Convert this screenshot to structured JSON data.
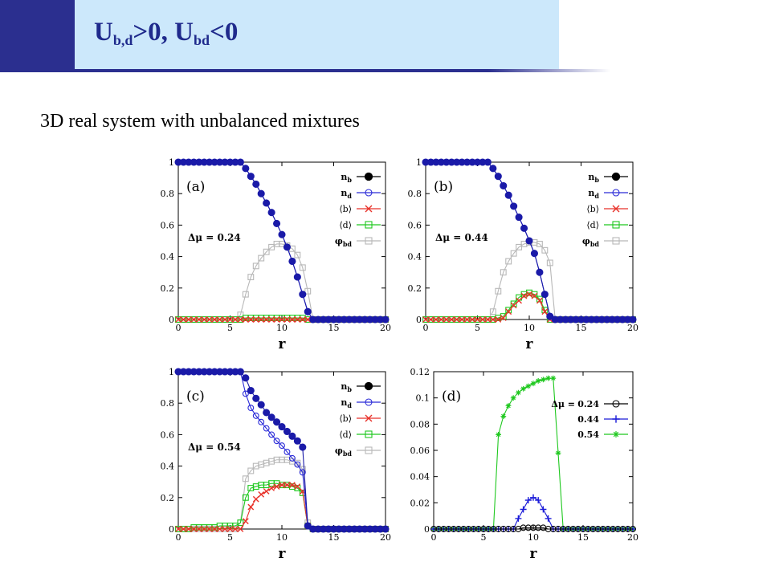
{
  "slide": {
    "title_main_1": "U",
    "title_sub_1": "b,d",
    "title_main_2": ">0, U",
    "title_sub_2": "bd",
    "title_main_3": "<0",
    "subtitle": "3D real system with unbalanced mixtures"
  },
  "colors": {
    "nb": "#000000",
    "nb_fill": "#1a1aa8",
    "nd": "#2a2ad8",
    "b": "#e8322a",
    "d": "#1ec81e",
    "phi": "#b8b8b8",
    "d024": "#000000",
    "d044": "#1a1ad8",
    "d054": "#1ec81e"
  },
  "chart_data": [
    {
      "type": "line",
      "panel": "(a)",
      "annotation": "Δμ = 0.24",
      "xlabel": "r",
      "xlim": [
        0,
        20
      ],
      "ylim": [
        0,
        1
      ],
      "xticks": [
        0,
        5,
        10,
        15,
        20
      ],
      "yticks": [
        0,
        0.2,
        0.4,
        0.6,
        0.8,
        1
      ],
      "ytick_labels": [
        "0",
        "0.2",
        "0.4",
        "0.6",
        "0.8",
        "1"
      ],
      "legend_position": "top-right",
      "x": [
        0,
        0.5,
        1,
        1.5,
        2,
        2.5,
        3,
        3.5,
        4,
        4.5,
        5,
        5.5,
        6,
        6.5,
        7,
        7.5,
        8,
        8.5,
        9,
        9.5,
        10,
        10.5,
        11,
        11.5,
        12,
        12.5,
        13,
        13.5,
        14,
        14.5,
        15,
        15.5,
        16,
        16.5,
        17,
        17.5,
        18,
        18.5,
        19,
        19.5,
        20
      ],
      "series": [
        {
          "name": "n_b",
          "style": "nb",
          "values": [
            1,
            1,
            1,
            1,
            1,
            1,
            1,
            1,
            1,
            1,
            1,
            1,
            1,
            0.96,
            0.91,
            0.86,
            0.8,
            0.74,
            0.68,
            0.61,
            0.54,
            0.46,
            0.37,
            0.27,
            0.16,
            0.05,
            0,
            0,
            0,
            0,
            0,
            0,
            0,
            0,
            0,
            0,
            0,
            0,
            0,
            0,
            0
          ]
        },
        {
          "name": "n_d",
          "style": "nd",
          "values": [
            1,
            1,
            1,
            1,
            1,
            1,
            1,
            1,
            1,
            1,
            1,
            1,
            1,
            0.96,
            0.91,
            0.86,
            0.8,
            0.74,
            0.68,
            0.61,
            0.54,
            0.46,
            0.37,
            0.27,
            0.16,
            0.05,
            0,
            0,
            0,
            0,
            0,
            0,
            0,
            0,
            0,
            0,
            0,
            0,
            0,
            0,
            0
          ]
        },
        {
          "name": "<b>",
          "style": "b",
          "values": [
            0,
            0,
            0,
            0,
            0,
            0,
            0,
            0,
            0,
            0,
            0,
            0,
            0,
            0,
            0,
            0,
            0,
            0,
            0,
            0,
            0,
            0,
            0,
            0,
            0,
            0,
            0,
            0,
            0,
            0,
            0,
            0,
            0,
            0,
            0,
            0,
            0,
            0,
            0,
            0,
            0
          ]
        },
        {
          "name": "<d>",
          "style": "d",
          "values": [
            0,
            0,
            0,
            0,
            0,
            0,
            0,
            0,
            0,
            0,
            0,
            0,
            0,
            0.01,
            0.01,
            0.01,
            0.01,
            0.01,
            0.01,
            0.01,
            0.01,
            0.01,
            0.01,
            0.01,
            0.01,
            0,
            0,
            0,
            0,
            0,
            0,
            0,
            0,
            0,
            0,
            0,
            0,
            0,
            0,
            0,
            0
          ]
        },
        {
          "name": "φ_bd",
          "style": "phi",
          "values": [
            0,
            0,
            0,
            0,
            0,
            0,
            0,
            0,
            0,
            0,
            0,
            0,
            0.03,
            0.16,
            0.27,
            0.34,
            0.39,
            0.43,
            0.46,
            0.48,
            0.48,
            0.47,
            0.45,
            0.41,
            0.33,
            0.18,
            0,
            0,
            0,
            0,
            0,
            0,
            0,
            0,
            0,
            0,
            0,
            0,
            0,
            0,
            0
          ]
        }
      ]
    },
    {
      "type": "line",
      "panel": "(b)",
      "annotation": "Δμ = 0.44",
      "xlabel": "r",
      "xlim": [
        0,
        20
      ],
      "ylim": [
        0,
        1
      ],
      "xticks": [
        0,
        5,
        10,
        15,
        20
      ],
      "yticks": [
        0,
        0.2,
        0.4,
        0.6,
        0.8,
        1
      ],
      "ytick_labels": [
        "0",
        "0.2",
        "0.4",
        "0.6",
        "0.8",
        "1"
      ],
      "legend_position": "top-right",
      "x": [
        0,
        0.5,
        1,
        1.5,
        2,
        2.5,
        3,
        3.5,
        4,
        4.5,
        5,
        5.5,
        6,
        6.5,
        7,
        7.5,
        8,
        8.5,
        9,
        9.5,
        10,
        10.5,
        11,
        11.5,
        12,
        12.5,
        13,
        13.5,
        14,
        14.5,
        15,
        15.5,
        16,
        16.5,
        17,
        17.5,
        18,
        18.5,
        19,
        19.5,
        20
      ],
      "series": [
        {
          "name": "n_b",
          "style": "nb",
          "values": [
            1,
            1,
            1,
            1,
            1,
            1,
            1,
            1,
            1,
            1,
            1,
            1,
            1,
            0.96,
            0.91,
            0.85,
            0.79,
            0.72,
            0.65,
            0.58,
            0.5,
            0.42,
            0.3,
            0.16,
            0.02,
            0,
            0,
            0,
            0,
            0,
            0,
            0,
            0,
            0,
            0,
            0,
            0,
            0,
            0,
            0,
            0
          ]
        },
        {
          "name": "n_d",
          "style": "nd",
          "values": [
            1,
            1,
            1,
            1,
            1,
            1,
            1,
            1,
            1,
            1,
            1,
            1,
            1,
            0.96,
            0.91,
            0.85,
            0.79,
            0.72,
            0.65,
            0.58,
            0.5,
            0.42,
            0.3,
            0.16,
            0.02,
            0,
            0,
            0,
            0,
            0,
            0,
            0,
            0,
            0,
            0,
            0,
            0,
            0,
            0,
            0,
            0
          ]
        },
        {
          "name": "<b>",
          "style": "b",
          "values": [
            0,
            0,
            0,
            0,
            0,
            0,
            0,
            0,
            0,
            0,
            0,
            0,
            0,
            0,
            0,
            0.01,
            0.05,
            0.09,
            0.12,
            0.15,
            0.16,
            0.15,
            0.12,
            0.05,
            0,
            0,
            0,
            0,
            0,
            0,
            0,
            0,
            0,
            0,
            0,
            0,
            0,
            0,
            0,
            0,
            0
          ]
        },
        {
          "name": "<d>",
          "style": "d",
          "values": [
            0,
            0,
            0,
            0,
            0,
            0,
            0,
            0,
            0,
            0,
            0,
            0,
            0,
            0,
            0.01,
            0.02,
            0.06,
            0.1,
            0.14,
            0.16,
            0.17,
            0.16,
            0.13,
            0.06,
            0,
            0,
            0,
            0,
            0,
            0,
            0,
            0,
            0,
            0,
            0,
            0,
            0,
            0,
            0,
            0,
            0
          ]
        },
        {
          "name": "φ_bd",
          "style": "phi",
          "values": [
            0,
            0,
            0,
            0,
            0,
            0,
            0,
            0,
            0,
            0,
            0,
            0,
            0,
            0.05,
            0.18,
            0.3,
            0.37,
            0.42,
            0.46,
            0.48,
            0.49,
            0.49,
            0.48,
            0.44,
            0.36,
            0,
            0,
            0,
            0,
            0,
            0,
            0,
            0,
            0,
            0,
            0,
            0,
            0,
            0,
            0,
            0
          ]
        }
      ]
    },
    {
      "type": "line",
      "panel": "(c)",
      "annotation": "Δμ = 0.54",
      "xlabel": "r",
      "xlim": [
        0,
        20
      ],
      "ylim": [
        0,
        1
      ],
      "xticks": [
        0,
        5,
        10,
        15,
        20
      ],
      "yticks": [
        0,
        0.2,
        0.4,
        0.6,
        0.8,
        1
      ],
      "ytick_labels": [
        "0",
        "0.2",
        "0.4",
        "0.6",
        "0.8",
        "1"
      ],
      "legend_position": "top-right",
      "x": [
        0,
        0.5,
        1,
        1.5,
        2,
        2.5,
        3,
        3.5,
        4,
        4.5,
        5,
        5.5,
        6,
        6.5,
        7,
        7.5,
        8,
        8.5,
        9,
        9.5,
        10,
        10.5,
        11,
        11.5,
        12,
        12.5,
        13,
        13.5,
        14,
        14.5,
        15,
        15.5,
        16,
        16.5,
        17,
        17.5,
        18,
        18.5,
        19,
        19.5,
        20
      ],
      "series": [
        {
          "name": "n_b",
          "style": "nb",
          "values": [
            1,
            1,
            1,
            1,
            1,
            1,
            1,
            1,
            1,
            1,
            1,
            1,
            1,
            0.96,
            0.88,
            0.83,
            0.79,
            0.74,
            0.71,
            0.68,
            0.65,
            0.62,
            0.59,
            0.56,
            0.52,
            0.02,
            0,
            0,
            0,
            0,
            0,
            0,
            0,
            0,
            0,
            0,
            0,
            0,
            0,
            0,
            0
          ]
        },
        {
          "name": "n_d",
          "style": "nd",
          "values": [
            1,
            1,
            1,
            1,
            1,
            1,
            1,
            1,
            1,
            1,
            1,
            1,
            1,
            0.86,
            0.77,
            0.72,
            0.68,
            0.64,
            0.6,
            0.56,
            0.53,
            0.49,
            0.45,
            0.41,
            0.36,
            0.02,
            0,
            0,
            0,
            0,
            0,
            0,
            0,
            0,
            0,
            0,
            0,
            0,
            0,
            0,
            0
          ]
        },
        {
          "name": "<b>",
          "style": "b",
          "values": [
            0,
            0,
            0,
            0,
            0,
            0,
            0,
            0,
            0,
            0,
            0,
            0,
            0,
            0.05,
            0.14,
            0.19,
            0.22,
            0.24,
            0.26,
            0.27,
            0.28,
            0.28,
            0.28,
            0.27,
            0.24,
            0.02,
            0,
            0,
            0,
            0,
            0,
            0,
            0,
            0,
            0,
            0,
            0,
            0,
            0,
            0,
            0
          ]
        },
        {
          "name": "<d>",
          "style": "d",
          "values": [
            0,
            0,
            0,
            0.01,
            0.01,
            0.01,
            0.01,
            0.01,
            0.02,
            0.02,
            0.02,
            0.02,
            0.04,
            0.2,
            0.26,
            0.27,
            0.28,
            0.28,
            0.29,
            0.29,
            0.28,
            0.28,
            0.27,
            0.26,
            0.23,
            0.02,
            0,
            0,
            0,
            0,
            0,
            0,
            0,
            0,
            0,
            0,
            0,
            0,
            0,
            0,
            0
          ]
        },
        {
          "name": "φ_bd",
          "style": "phi",
          "values": [
            0,
            0,
            0,
            0,
            0,
            0,
            0,
            0,
            0,
            0,
            0,
            0,
            0.04,
            0.32,
            0.37,
            0.4,
            0.41,
            0.42,
            0.43,
            0.44,
            0.44,
            0.44,
            0.43,
            0.42,
            0.38,
            0.04,
            0,
            0,
            0,
            0,
            0,
            0,
            0,
            0,
            0,
            0,
            0,
            0,
            0,
            0,
            0
          ]
        }
      ]
    },
    {
      "type": "line",
      "panel": "(d)",
      "xlabel": "r",
      "xlim": [
        0,
        20
      ],
      "ylim": [
        0,
        0.12
      ],
      "xticks": [
        0,
        5,
        10,
        15,
        20
      ],
      "yticks": [
        0,
        0.02,
        0.04,
        0.06,
        0.08,
        0.1,
        0.12
      ],
      "ytick_labels": [
        "0",
        "0.02",
        "0.04",
        "0.06",
        "0.08",
        "0.1",
        "0.12"
      ],
      "legend_position": "top-right",
      "legend_prefix": "Δμ =",
      "x": [
        0,
        0.5,
        1,
        1.5,
        2,
        2.5,
        3,
        3.5,
        4,
        4.5,
        5,
        5.5,
        6,
        6.5,
        7,
        7.5,
        8,
        8.5,
        9,
        9.5,
        10,
        10.5,
        11,
        11.5,
        12,
        12.5,
        13,
        13.5,
        14,
        14.5,
        15,
        15.5,
        16,
        16.5,
        17,
        17.5,
        18,
        18.5,
        19,
        19.5,
        20
      ],
      "series": [
        {
          "name": "0.24",
          "style": "d024",
          "values": [
            0,
            0,
            0,
            0,
            0,
            0,
            0,
            0,
            0,
            0,
            0,
            0,
            0,
            0,
            0,
            0,
            0,
            0,
            0.001,
            0.001,
            0.001,
            0.001,
            0.001,
            0,
            0,
            0,
            0,
            0,
            0,
            0,
            0,
            0,
            0,
            0,
            0,
            0,
            0,
            0,
            0,
            0,
            0
          ]
        },
        {
          "name": "0.44",
          "style": "d044",
          "values": [
            0,
            0,
            0,
            0,
            0,
            0,
            0,
            0,
            0,
            0,
            0,
            0,
            0,
            0,
            0,
            0,
            0,
            0.008,
            0.015,
            0.022,
            0.024,
            0.022,
            0.015,
            0.008,
            0,
            0,
            0,
            0,
            0,
            0,
            0,
            0,
            0,
            0,
            0,
            0,
            0,
            0,
            0,
            0,
            0
          ]
        },
        {
          "name": "0.54",
          "style": "d054",
          "values": [
            0,
            0,
            0,
            0,
            0,
            0,
            0,
            0,
            0,
            0,
            0,
            0,
            0,
            0.072,
            0.086,
            0.094,
            0.1,
            0.104,
            0.107,
            0.109,
            0.111,
            0.113,
            0.114,
            0.115,
            0.115,
            0.058,
            0,
            0,
            0,
            0,
            0,
            0,
            0,
            0,
            0,
            0,
            0,
            0,
            0,
            0,
            0
          ]
        }
      ]
    }
  ]
}
